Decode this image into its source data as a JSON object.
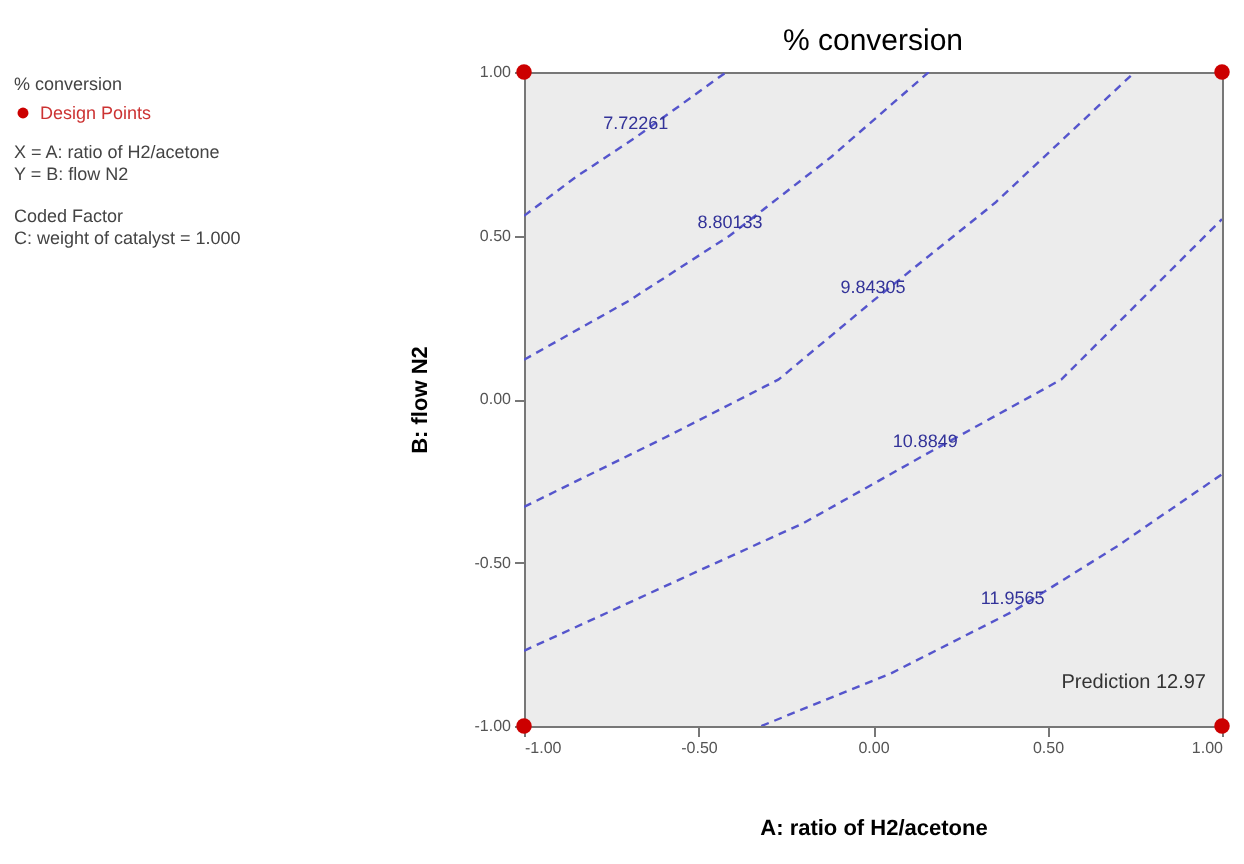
{
  "chart_data": {
    "type": "line",
    "title": "% conversion",
    "xlabel": "A: ratio of H2/acetone",
    "ylabel": "B: flow N2",
    "legend_title": "% conversion",
    "legend": "left",
    "grid": false,
    "line_style": "dashed",
    "xlim": [
      -1,
      1
    ],
    "ylim": [
      -1,
      1
    ],
    "xticks": [
      {
        "value": -1,
        "label": "-1.00"
      },
      {
        "value": -0.5,
        "label": "-0.50"
      },
      {
        "value": 0,
        "label": "0.00"
      },
      {
        "value": 0.5,
        "label": "0.50"
      },
      {
        "value": 1,
        "label": "1.00"
      }
    ],
    "yticks": [
      {
        "value": -1,
        "label": "-1.00"
      },
      {
        "value": -0.5,
        "label": "-0.50"
      },
      {
        "value": 0,
        "label": "0.00"
      },
      {
        "value": 0.5,
        "label": "0.50"
      },
      {
        "value": 1,
        "label": "1.00"
      }
    ],
    "series": [
      {
        "name": "7.72261",
        "color": "#5555cc",
        "x": [
          -1,
          -0.85,
          -0.68,
          -0.55,
          -0.42
        ],
        "values": [
          0.56,
          0.68,
          0.8,
          0.9,
          1
        ]
      },
      {
        "name": "8.80133",
        "color": "#5555cc",
        "x": [
          -1,
          -0.7,
          -0.41,
          -0.12,
          0.16
        ],
        "values": [
          0.12,
          0.3,
          0.5,
          0.74,
          1
        ]
      },
      {
        "name": "9.84305",
        "color": "#5555cc",
        "x": [
          -1,
          -0.6,
          -0.27,
          0,
          0.35,
          0.75
        ],
        "values": [
          -0.33,
          -0.12,
          0.06,
          0.3,
          0.6,
          1
        ]
      },
      {
        "name": "10.8849",
        "color": "#5555cc",
        "x": [
          -1,
          -0.55,
          -0.2,
          0.15,
          0.54,
          1
        ],
        "values": [
          -0.77,
          -0.55,
          -0.38,
          -0.17,
          0.06,
          0.55
        ]
      },
      {
        "name": "11.9565",
        "color": "#5555cc",
        "x": [
          -0.32,
          0.05,
          0.4,
          0.7,
          1
        ],
        "values": [
          -1,
          -0.84,
          -0.65,
          -0.45,
          -0.23
        ]
      },
      {
        "name": "Design Points",
        "type": "scatter",
        "marker": "circle",
        "color": "#cc0000",
        "x": [
          -1,
          1,
          -1,
          1
        ],
        "values": [
          1,
          1,
          -1,
          -1
        ]
      }
    ],
    "annotations": [
      "X = A: ratio of H2/acetone",
      "Y = B: flow N2",
      "Coded Factor",
      "C: weight of catalyst = 1.000",
      {
        "text": "Prediction  12.97",
        "x": 1,
        "y": -1
      }
    ]
  }
}
